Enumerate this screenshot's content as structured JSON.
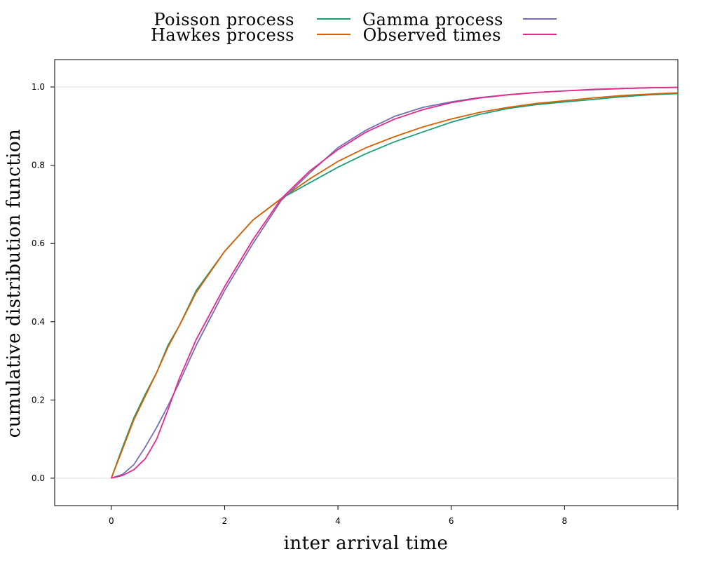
{
  "chart_data": {
    "type": "line",
    "title": "",
    "xlabel": "inter arrival time",
    "ylabel": "cumulative distribution function",
    "xlim": [
      -1,
      10
    ],
    "ylim": [
      -0.07,
      1.07
    ],
    "x_ticks": [
      0,
      2,
      4,
      6,
      8
    ],
    "x_tick_labels": [
      "0",
      "2",
      "4",
      "6",
      "8"
    ],
    "y_ticks": [
      0.0,
      0.2,
      0.4,
      0.6,
      0.8,
      1.0
    ],
    "y_tick_labels": [
      "0.0",
      "0.2",
      "0.4",
      "0.6",
      "0.8",
      "1.0"
    ],
    "reference_lines_y": [
      0,
      1
    ],
    "grid": false,
    "legend_placement": "top-center, outside plot, 2 columns",
    "series": [
      {
        "name": "Poisson process",
        "color": "#1b9e77",
        "x": [
          0,
          0.2,
          0.4,
          0.6,
          0.8,
          1.0,
          1.2,
          1.5,
          2.0,
          2.5,
          3.0,
          3.5,
          4.0,
          4.5,
          5.0,
          5.5,
          6.0,
          6.5,
          7.0,
          7.5,
          8.0,
          8.5,
          9.0,
          9.5,
          10.0
        ],
        "values": [
          0.0,
          0.08,
          0.155,
          0.215,
          0.27,
          0.34,
          0.39,
          0.48,
          0.58,
          0.66,
          0.715,
          0.755,
          0.795,
          0.83,
          0.86,
          0.885,
          0.91,
          0.93,
          0.945,
          0.955,
          0.962,
          0.968,
          0.975,
          0.98,
          0.983
        ]
      },
      {
        "name": "Hawkes process",
        "color": "#d95f02",
        "x": [
          0,
          0.2,
          0.4,
          0.6,
          0.8,
          1.0,
          1.2,
          1.5,
          2.0,
          2.5,
          3.0,
          3.5,
          4.0,
          4.5,
          5.0,
          5.5,
          6.0,
          6.5,
          7.0,
          7.5,
          8.0,
          8.5,
          9.0,
          9.5,
          10.0
        ],
        "values": [
          0.0,
          0.075,
          0.15,
          0.21,
          0.27,
          0.335,
          0.39,
          0.475,
          0.58,
          0.66,
          0.715,
          0.765,
          0.81,
          0.845,
          0.873,
          0.898,
          0.918,
          0.935,
          0.948,
          0.958,
          0.965,
          0.972,
          0.978,
          0.982,
          0.985
        ]
      },
      {
        "name": "Gamma process",
        "color": "#7570b3",
        "x": [
          0,
          0.2,
          0.4,
          0.6,
          0.8,
          1.0,
          1.2,
          1.5,
          2.0,
          2.5,
          3.0,
          3.5,
          4.0,
          4.5,
          5.0,
          5.5,
          6.0,
          6.5,
          7.0,
          7.5,
          8.0,
          8.5,
          9.0,
          9.5,
          10.0
        ],
        "values": [
          0.0,
          0.01,
          0.035,
          0.08,
          0.13,
          0.185,
          0.245,
          0.34,
          0.48,
          0.6,
          0.71,
          0.78,
          0.845,
          0.89,
          0.925,
          0.948,
          0.962,
          0.973,
          0.98,
          0.986,
          0.99,
          0.993,
          0.996,
          0.998,
          0.999
        ]
      },
      {
        "name": "Observed times",
        "color": "#e7298a",
        "x": [
          0,
          0.2,
          0.4,
          0.6,
          0.8,
          1.0,
          1.2,
          1.5,
          2.0,
          2.5,
          3.0,
          3.5,
          4.0,
          4.5,
          5.0,
          5.5,
          6.0,
          6.5,
          7.0,
          7.5,
          8.0,
          8.5,
          9.0,
          9.5,
          10.0
        ],
        "values": [
          0.0,
          0.007,
          0.022,
          0.05,
          0.1,
          0.175,
          0.255,
          0.355,
          0.49,
          0.61,
          0.715,
          0.785,
          0.84,
          0.885,
          0.918,
          0.942,
          0.96,
          0.972,
          0.98,
          0.986,
          0.99,
          0.994,
          0.996,
          0.998,
          0.999
        ]
      }
    ],
    "legend": [
      {
        "label": "Poisson process",
        "color": "#1b9e77"
      },
      {
        "label": "Hawkes process",
        "color": "#d95f02"
      },
      {
        "label": "Gamma process",
        "color": "#7570b3"
      },
      {
        "label": "Observed times",
        "color": "#e7298a"
      }
    ],
    "ref_line_color": "#dddddd"
  }
}
